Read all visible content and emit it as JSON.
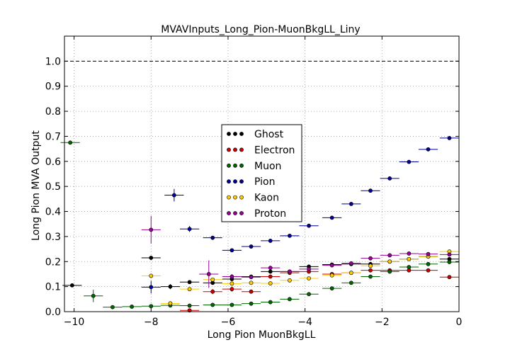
{
  "chart_data": {
    "type": "scatter",
    "title": "MVAVInputs_Long_Pion-MuonBkgLL_Liny",
    "xlabel": "Long Pion MuonBkgLL",
    "ylabel": "Long Pion MVA Output",
    "xlim": [
      -10.25,
      0
    ],
    "ylim": [
      0,
      1.1
    ],
    "xticks": [
      -10,
      -8,
      -6,
      -4,
      -2,
      0
    ],
    "xtick_labels": [
      "−10",
      "−8",
      "−6",
      "−4",
      "−2",
      "0"
    ],
    "yticks": [
      0.0,
      0.1,
      0.2,
      0.3,
      0.4,
      0.5,
      0.6,
      0.7,
      0.8,
      0.9,
      1.0
    ],
    "ytick_labels": [
      "0.0",
      "0.1",
      "0.2",
      "0.3",
      "0.4",
      "0.5",
      "0.6",
      "0.7",
      "0.8",
      "0.9",
      "1.0"
    ],
    "grid": true,
    "reference_line": {
      "y": 1.0,
      "style": "dashed"
    },
    "legend_position": "center",
    "series": [
      {
        "name": "Ghost",
        "color": "#000000",
        "points": [
          {
            "x": -10.05,
            "xerr": 0.25,
            "y": 0.105,
            "yerr": 0.005
          },
          {
            "x": -8.0,
            "xerr": 0.25,
            "y": 0.215,
            "yerr": 0.008
          },
          {
            "x": -7.5,
            "xerr": 0.25,
            "y": 0.1,
            "yerr": 0.01
          },
          {
            "x": -7.0,
            "xerr": 0.25,
            "y": 0.118,
            "yerr": 0.005
          },
          {
            "x": -6.4,
            "xerr": 0.25,
            "y": 0.115,
            "yerr": 0.005
          },
          {
            "x": -5.9,
            "xerr": 0.25,
            "y": 0.13,
            "yerr": 0.005
          },
          {
            "x": -5.4,
            "xerr": 0.25,
            "y": 0.14,
            "yerr": 0.005
          },
          {
            "x": -4.9,
            "xerr": 0.25,
            "y": 0.16,
            "yerr": 0.004
          },
          {
            "x": -4.4,
            "xerr": 0.25,
            "y": 0.16,
            "yerr": 0.004
          },
          {
            "x": -3.9,
            "xerr": 0.25,
            "y": 0.18,
            "yerr": 0.004
          },
          {
            "x": -3.3,
            "xerr": 0.25,
            "y": 0.188,
            "yerr": 0.004
          },
          {
            "x": -2.8,
            "xerr": 0.25,
            "y": 0.19,
            "yerr": 0.003
          },
          {
            "x": -2.3,
            "xerr": 0.25,
            "y": 0.19,
            "yerr": 0.003
          },
          {
            "x": -1.8,
            "xerr": 0.25,
            "y": 0.2,
            "yerr": 0.003
          },
          {
            "x": -1.3,
            "xerr": 0.25,
            "y": 0.21,
            "yerr": 0.003
          },
          {
            "x": -0.8,
            "xerr": 0.25,
            "y": 0.22,
            "yerr": 0.003
          },
          {
            "x": -0.25,
            "xerr": 0.25,
            "y": 0.21,
            "yerr": 0.003
          }
        ]
      },
      {
        "name": "Electron",
        "color": "#cc0000",
        "points": [
          {
            "x": -7.0,
            "xerr": 0.25,
            "y": 0.005,
            "yerr": 0.008
          },
          {
            "x": -6.4,
            "xerr": 0.25,
            "y": 0.08,
            "yerr": 0.01
          },
          {
            "x": -5.9,
            "xerr": 0.25,
            "y": 0.09,
            "yerr": 0.01
          },
          {
            "x": -5.4,
            "xerr": 0.25,
            "y": 0.08,
            "yerr": 0.008
          },
          {
            "x": -4.9,
            "xerr": 0.25,
            "y": 0.14,
            "yerr": 0.006
          },
          {
            "x": -4.4,
            "xerr": 0.25,
            "y": 0.155,
            "yerr": 0.005
          },
          {
            "x": -3.9,
            "xerr": 0.25,
            "y": 0.16,
            "yerr": 0.005
          },
          {
            "x": -3.3,
            "xerr": 0.25,
            "y": 0.15,
            "yerr": 0.004
          },
          {
            "x": -2.8,
            "xerr": 0.25,
            "y": 0.155,
            "yerr": 0.004
          },
          {
            "x": -2.3,
            "xerr": 0.25,
            "y": 0.165,
            "yerr": 0.004
          },
          {
            "x": -1.8,
            "xerr": 0.25,
            "y": 0.165,
            "yerr": 0.004
          },
          {
            "x": -1.3,
            "xerr": 0.25,
            "y": 0.165,
            "yerr": 0.004
          },
          {
            "x": -0.8,
            "xerr": 0.25,
            "y": 0.165,
            "yerr": 0.004
          },
          {
            "x": -0.25,
            "xerr": 0.25,
            "y": 0.138,
            "yerr": 0.004
          }
        ]
      },
      {
        "name": "Muon",
        "color": "#006600",
        "points": [
          {
            "x": -10.1,
            "xerr": 0.25,
            "y": 0.675,
            "yerr": 0.005
          },
          {
            "x": -9.5,
            "xerr": 0.25,
            "y": 0.063,
            "yerr": 0.025
          },
          {
            "x": -9.0,
            "xerr": 0.25,
            "y": 0.018,
            "yerr": 0.003
          },
          {
            "x": -8.5,
            "xerr": 0.25,
            "y": 0.02,
            "yerr": 0.002
          },
          {
            "x": -8.0,
            "xerr": 0.25,
            "y": 0.022,
            "yerr": 0.002
          },
          {
            "x": -7.5,
            "xerr": 0.25,
            "y": 0.025,
            "yerr": 0.002
          },
          {
            "x": -7.0,
            "xerr": 0.25,
            "y": 0.024,
            "yerr": 0.002
          },
          {
            "x": -6.4,
            "xerr": 0.25,
            "y": 0.027,
            "yerr": 0.002
          },
          {
            "x": -5.9,
            "xerr": 0.25,
            "y": 0.027,
            "yerr": 0.002
          },
          {
            "x": -5.4,
            "xerr": 0.25,
            "y": 0.032,
            "yerr": 0.002
          },
          {
            "x": -4.9,
            "xerr": 0.25,
            "y": 0.038,
            "yerr": 0.002
          },
          {
            "x": -4.4,
            "xerr": 0.25,
            "y": 0.05,
            "yerr": 0.002
          },
          {
            "x": -3.9,
            "xerr": 0.25,
            "y": 0.07,
            "yerr": 0.002
          },
          {
            "x": -3.3,
            "xerr": 0.25,
            "y": 0.093,
            "yerr": 0.002
          },
          {
            "x": -2.8,
            "xerr": 0.25,
            "y": 0.115,
            "yerr": 0.002
          },
          {
            "x": -2.3,
            "xerr": 0.25,
            "y": 0.14,
            "yerr": 0.002
          },
          {
            "x": -1.8,
            "xerr": 0.25,
            "y": 0.16,
            "yerr": 0.002
          },
          {
            "x": -1.3,
            "xerr": 0.25,
            "y": 0.178,
            "yerr": 0.002
          },
          {
            "x": -0.8,
            "xerr": 0.25,
            "y": 0.19,
            "yerr": 0.002
          },
          {
            "x": -0.25,
            "xerr": 0.25,
            "y": 0.198,
            "yerr": 0.002
          }
        ]
      },
      {
        "name": "Pion",
        "color": "#000099",
        "points": [
          {
            "x": -8.0,
            "xerr": 0.25,
            "y": 0.098,
            "yerr": 0.025
          },
          {
            "x": -7.4,
            "xerr": 0.25,
            "y": 0.465,
            "yerr": 0.025
          },
          {
            "x": -7.0,
            "xerr": 0.25,
            "y": 0.33,
            "yerr": 0.012
          },
          {
            "x": -6.4,
            "xerr": 0.25,
            "y": 0.295,
            "yerr": 0.006
          },
          {
            "x": -5.9,
            "xerr": 0.25,
            "y": 0.245,
            "yerr": 0.005
          },
          {
            "x": -5.4,
            "xerr": 0.25,
            "y": 0.26,
            "yerr": 0.004
          },
          {
            "x": -4.9,
            "xerr": 0.25,
            "y": 0.283,
            "yerr": 0.004
          },
          {
            "x": -4.4,
            "xerr": 0.25,
            "y": 0.303,
            "yerr": 0.003
          },
          {
            "x": -3.9,
            "xerr": 0.25,
            "y": 0.343,
            "yerr": 0.003
          },
          {
            "x": -3.3,
            "xerr": 0.25,
            "y": 0.375,
            "yerr": 0.003
          },
          {
            "x": -2.8,
            "xerr": 0.25,
            "y": 0.43,
            "yerr": 0.003
          },
          {
            "x": -2.3,
            "xerr": 0.25,
            "y": 0.483,
            "yerr": 0.003
          },
          {
            "x": -1.8,
            "xerr": 0.25,
            "y": 0.532,
            "yerr": 0.003
          },
          {
            "x": -1.3,
            "xerr": 0.25,
            "y": 0.598,
            "yerr": 0.003
          },
          {
            "x": -0.8,
            "xerr": 0.25,
            "y": 0.648,
            "yerr": 0.003
          },
          {
            "x": -0.25,
            "xerr": 0.25,
            "y": 0.693,
            "yerr": 0.003
          }
        ]
      },
      {
        "name": "Kaon",
        "color": "#ffcc00",
        "points": [
          {
            "x": -8.0,
            "xerr": 0.25,
            "y": 0.143,
            "yerr": 0.01
          },
          {
            "x": -7.5,
            "xerr": 0.25,
            "y": 0.033,
            "yerr": 0.004
          },
          {
            "x": -7.0,
            "xerr": 0.25,
            "y": 0.09,
            "yerr": 0.006
          },
          {
            "x": -6.4,
            "xerr": 0.25,
            "y": 0.128,
            "yerr": 0.005
          },
          {
            "x": -5.9,
            "xerr": 0.25,
            "y": 0.112,
            "yerr": 0.004
          },
          {
            "x": -5.4,
            "xerr": 0.25,
            "y": 0.115,
            "yerr": 0.004
          },
          {
            "x": -4.9,
            "xerr": 0.25,
            "y": 0.113,
            "yerr": 0.004
          },
          {
            "x": -4.4,
            "xerr": 0.25,
            "y": 0.125,
            "yerr": 0.003
          },
          {
            "x": -3.9,
            "xerr": 0.25,
            "y": 0.133,
            "yerr": 0.003
          },
          {
            "x": -3.3,
            "xerr": 0.25,
            "y": 0.145,
            "yerr": 0.003
          },
          {
            "x": -2.8,
            "xerr": 0.25,
            "y": 0.155,
            "yerr": 0.003
          },
          {
            "x": -2.3,
            "xerr": 0.25,
            "y": 0.183,
            "yerr": 0.003
          },
          {
            "x": -1.8,
            "xerr": 0.25,
            "y": 0.2,
            "yerr": 0.003
          },
          {
            "x": -1.3,
            "xerr": 0.25,
            "y": 0.21,
            "yerr": 0.003
          },
          {
            "x": -0.8,
            "xerr": 0.25,
            "y": 0.22,
            "yerr": 0.003
          },
          {
            "x": -0.25,
            "xerr": 0.25,
            "y": 0.24,
            "yerr": 0.003
          }
        ]
      },
      {
        "name": "Proton",
        "color": "#990099",
        "points": [
          {
            "x": -8.0,
            "xerr": 0.25,
            "y": 0.327,
            "yerr": 0.055
          },
          {
            "x": -6.5,
            "xerr": 0.25,
            "y": 0.15,
            "yerr": 0.055
          },
          {
            "x": -5.9,
            "xerr": 0.25,
            "y": 0.14,
            "yerr": 0.01
          },
          {
            "x": -5.4,
            "xerr": 0.25,
            "y": 0.138,
            "yerr": 0.006
          },
          {
            "x": -4.9,
            "xerr": 0.25,
            "y": 0.175,
            "yerr": 0.005
          },
          {
            "x": -4.4,
            "xerr": 0.25,
            "y": 0.16,
            "yerr": 0.004
          },
          {
            "x": -3.9,
            "xerr": 0.25,
            "y": 0.17,
            "yerr": 0.004
          },
          {
            "x": -3.3,
            "xerr": 0.25,
            "y": 0.185,
            "yerr": 0.003
          },
          {
            "x": -2.8,
            "xerr": 0.25,
            "y": 0.193,
            "yerr": 0.003
          },
          {
            "x": -2.3,
            "xerr": 0.25,
            "y": 0.213,
            "yerr": 0.003
          },
          {
            "x": -1.8,
            "xerr": 0.25,
            "y": 0.225,
            "yerr": 0.003
          },
          {
            "x": -1.3,
            "xerr": 0.25,
            "y": 0.232,
            "yerr": 0.003
          },
          {
            "x": -0.8,
            "xerr": 0.25,
            "y": 0.23,
            "yerr": 0.003
          },
          {
            "x": -0.25,
            "xerr": 0.25,
            "y": 0.228,
            "yerr": 0.003
          }
        ]
      }
    ]
  }
}
